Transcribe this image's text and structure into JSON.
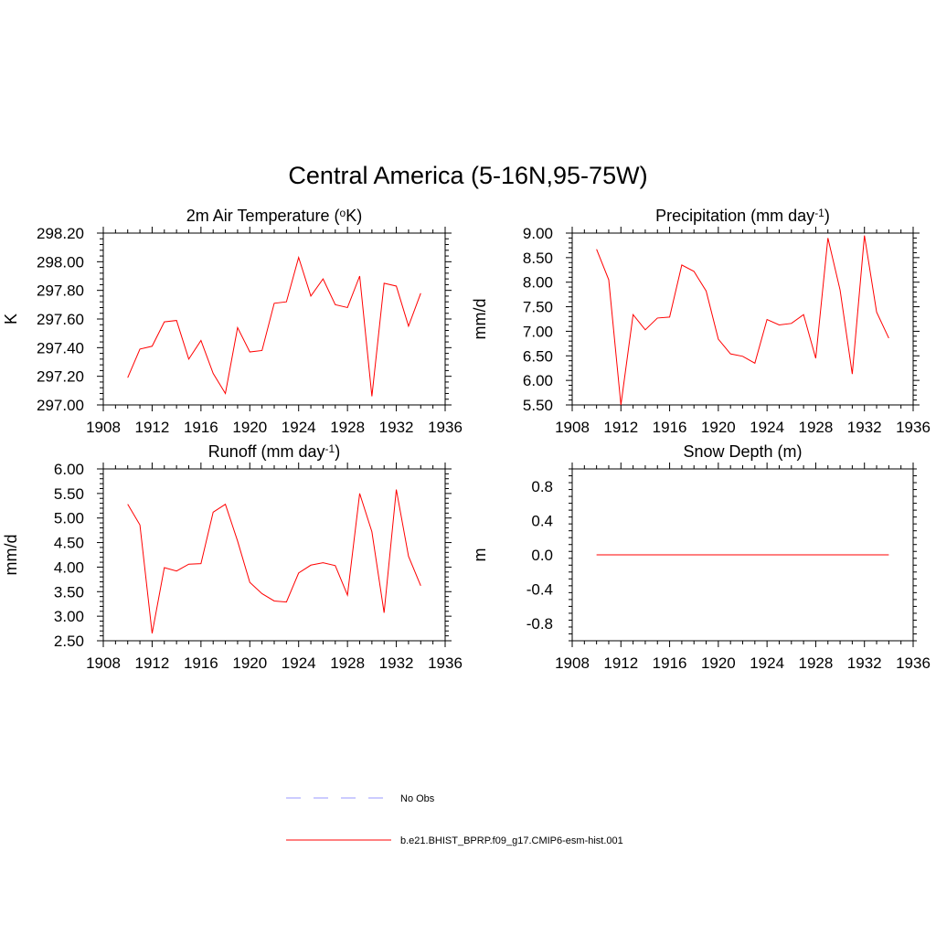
{
  "figure": {
    "title": "Central America (5-16N,95-75W)"
  },
  "colors": {
    "model_line": "#ff0000",
    "obs_line": "#9999ff",
    "axis": "#000000"
  },
  "legend": {
    "entries": [
      {
        "label": "No Obs",
        "style": "dashed",
        "color": "#9999ff"
      },
      {
        "label": "b.e21.BHIST_BPRP.f09_g17.CMIP6-esm-hist.001",
        "style": "solid",
        "color": "#ff0000"
      }
    ]
  },
  "chart_data": [
    {
      "type": "line",
      "title": "2m Air Temperature (",
      "title_sup": "o",
      "title_tail": "K)",
      "ylabel": "K",
      "xlim": [
        1908,
        1936
      ],
      "ylim": [
        297.0,
        298.2
      ],
      "xticks": [
        1908,
        1912,
        1916,
        1920,
        1924,
        1928,
        1932,
        1936
      ],
      "yticks": [
        297.0,
        297.2,
        297.4,
        297.6,
        297.8,
        298.0,
        298.2
      ],
      "ytick_labels": [
        "297.00",
        "297.20",
        "297.40",
        "297.60",
        "297.80",
        "298.00",
        "298.20"
      ],
      "series": [
        {
          "x": [
            1910,
            1911,
            1912,
            1913,
            1914,
            1915,
            1916,
            1917,
            1918,
            1919,
            1920,
            1921,
            1922,
            1923,
            1924,
            1925,
            1926,
            1927,
            1928,
            1929,
            1930,
            1931,
            1932,
            1933,
            1934
          ],
          "values": [
            297.19,
            297.39,
            297.41,
            297.58,
            297.59,
            297.32,
            297.45,
            297.22,
            297.08,
            297.54,
            297.37,
            297.38,
            297.71,
            297.72,
            298.03,
            297.76,
            297.88,
            297.7,
            297.68,
            297.9,
            297.06,
            297.85,
            297.83,
            297.55,
            297.78
          ]
        }
      ]
    },
    {
      "type": "line",
      "title": "Precipitation (mm day",
      "title_sup": "-1",
      "title_tail": ")",
      "ylabel": "mm/d",
      "xlim": [
        1908,
        1936
      ],
      "ylim": [
        5.5,
        9.0
      ],
      "xticks": [
        1908,
        1912,
        1916,
        1920,
        1924,
        1928,
        1932,
        1936
      ],
      "yticks": [
        5.5,
        6.0,
        6.5,
        7.0,
        7.5,
        8.0,
        8.5,
        9.0
      ],
      "ytick_labels": [
        "5.50",
        "6.00",
        "6.50",
        "7.00",
        "7.50",
        "8.00",
        "8.50",
        "9.00"
      ],
      "series": [
        {
          "x": [
            1910,
            1911,
            1912,
            1913,
            1914,
            1915,
            1916,
            1917,
            1918,
            1919,
            1920,
            1921,
            1922,
            1923,
            1924,
            1925,
            1926,
            1927,
            1928,
            1929,
            1930,
            1931,
            1932,
            1933,
            1934
          ],
          "values": [
            8.67,
            8.05,
            5.5,
            7.34,
            7.03,
            7.27,
            7.29,
            8.35,
            8.22,
            7.82,
            6.84,
            6.54,
            6.49,
            6.35,
            7.24,
            7.13,
            7.16,
            7.34,
            6.45,
            8.9,
            7.84,
            6.13,
            8.95,
            7.39,
            6.86
          ]
        }
      ]
    },
    {
      "type": "line",
      "title": "Runoff (mm day",
      "title_sup": "-1",
      "title_tail": ")",
      "ylabel": "mm/d",
      "xlim": [
        1908,
        1936
      ],
      "ylim": [
        2.5,
        6.0
      ],
      "xticks": [
        1908,
        1912,
        1916,
        1920,
        1924,
        1928,
        1932,
        1936
      ],
      "yticks": [
        2.5,
        3.0,
        3.5,
        4.0,
        4.5,
        5.0,
        5.5,
        6.0
      ],
      "ytick_labels": [
        "2.50",
        "3.00",
        "3.50",
        "4.00",
        "4.50",
        "5.00",
        "5.50",
        "6.00"
      ],
      "series": [
        {
          "x": [
            1910,
            1911,
            1912,
            1913,
            1914,
            1915,
            1916,
            1917,
            1918,
            1919,
            1920,
            1921,
            1922,
            1923,
            1924,
            1925,
            1926,
            1927,
            1928,
            1929,
            1930,
            1931,
            1932,
            1933,
            1934
          ],
          "values": [
            5.28,
            4.86,
            2.65,
            3.99,
            3.92,
            4.06,
            4.07,
            5.12,
            5.28,
            4.53,
            3.69,
            3.46,
            3.31,
            3.29,
            3.88,
            4.04,
            4.09,
            4.03,
            3.43,
            5.5,
            4.72,
            3.07,
            5.58,
            4.22,
            3.62
          ]
        }
      ]
    },
    {
      "type": "line",
      "title": "Snow Depth (m)",
      "title_sup": "",
      "title_tail": "",
      "ylabel": "m",
      "xlim": [
        1908,
        1936
      ],
      "ylim": [
        -1.0,
        1.0
      ],
      "xticks": [
        1908,
        1912,
        1916,
        1920,
        1924,
        1928,
        1932,
        1936
      ],
      "yticks": [
        -0.8,
        -0.4,
        0.0,
        0.4,
        0.8
      ],
      "ytick_labels": [
        "-0.8",
        "-0.4",
        "0.0",
        "0.4",
        "0.8"
      ],
      "series": [
        {
          "x": [
            1910,
            1911,
            1912,
            1913,
            1914,
            1915,
            1916,
            1917,
            1918,
            1919,
            1920,
            1921,
            1922,
            1923,
            1924,
            1925,
            1926,
            1927,
            1928,
            1929,
            1930,
            1931,
            1932,
            1933,
            1934
          ],
          "values": [
            0,
            0,
            0,
            0,
            0,
            0,
            0,
            0,
            0,
            0,
            0,
            0,
            0,
            0,
            0,
            0,
            0,
            0,
            0,
            0,
            0,
            0,
            0,
            0,
            0
          ]
        }
      ]
    }
  ]
}
